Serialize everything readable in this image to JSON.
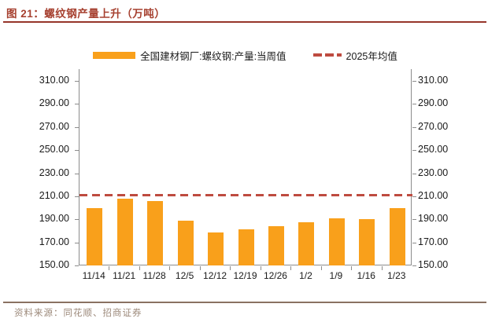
{
  "header": {
    "title": "图 21：螺纹钢产量上升（万吨）"
  },
  "legend": [
    {
      "label": "全国建材钢厂:螺纹钢:产量:当周值",
      "swatch": "bar-swatch",
      "color": "#F9A01B"
    },
    {
      "label": "2025年均值",
      "swatch": "dashed-line-swatch",
      "color": "#BE4B40"
    }
  ],
  "footer": {
    "source": "资料来源：同花顺、招商证券"
  },
  "colors": {
    "bar": "#F9A01B",
    "avg_line": "#BE4B40",
    "title_text": "#A6402F",
    "title_rule": "#96352A",
    "footer_rule": "#8A7262",
    "footer_text": "#9C897A",
    "axis": "#8c8c8c",
    "tick_text": "#1a1a1a"
  },
  "chart_data": {
    "type": "bar",
    "title": "图 21：螺纹钢产量上升（万吨）",
    "categories": [
      "11/14",
      "11/21",
      "11/28",
      "12/5",
      "12/12",
      "12/19",
      "12/26",
      "1/2",
      "1/9",
      "1/16",
      "1/23"
    ],
    "series": [
      {
        "name": "全国建材钢厂:螺纹钢:产量:当周值",
        "type": "bar",
        "color": "#F9A01B",
        "values": [
          200,
          208,
          206,
          189,
          178.5,
          181,
          184,
          187.5,
          191,
          190,
          199.5
        ]
      },
      {
        "name": "2025年均值",
        "type": "dashed-line",
        "color": "#BE4B40",
        "constant_value": 211
      }
    ],
    "xlabel": "",
    "ylabel": "",
    "ylim": [
      150,
      310
    ],
    "y_ticks": [
      150,
      170,
      190,
      210,
      230,
      250,
      270,
      290,
      310
    ],
    "y_tick_decimals": 2,
    "dual_y_axis": true,
    "grid": false,
    "legend_position": "top"
  }
}
